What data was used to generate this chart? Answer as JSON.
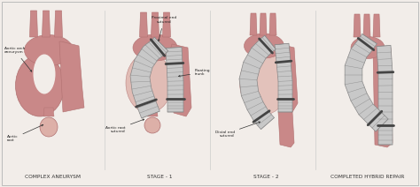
{
  "background_color": "#f2ede9",
  "border_color": "#bbbbbb",
  "labels": [
    "COMPLEX ANEURYSM",
    "STAGE - 1",
    "STAGE - 2",
    "COMPLETED HYBRID REPAIR"
  ],
  "label_fontsize": 4.2,
  "label_color": "#333333",
  "aorta_color": "#c98888",
  "aorta_light": "#ddb0a8",
  "aorta_dark": "#b07070",
  "stent_fill": "#c8c8c8",
  "stent_line": "#888888",
  "stent_dark": "#666666",
  "annotation_fontsize": 3.2,
  "annotation_color": "#222222",
  "fig_width": 4.74,
  "fig_height": 2.12
}
